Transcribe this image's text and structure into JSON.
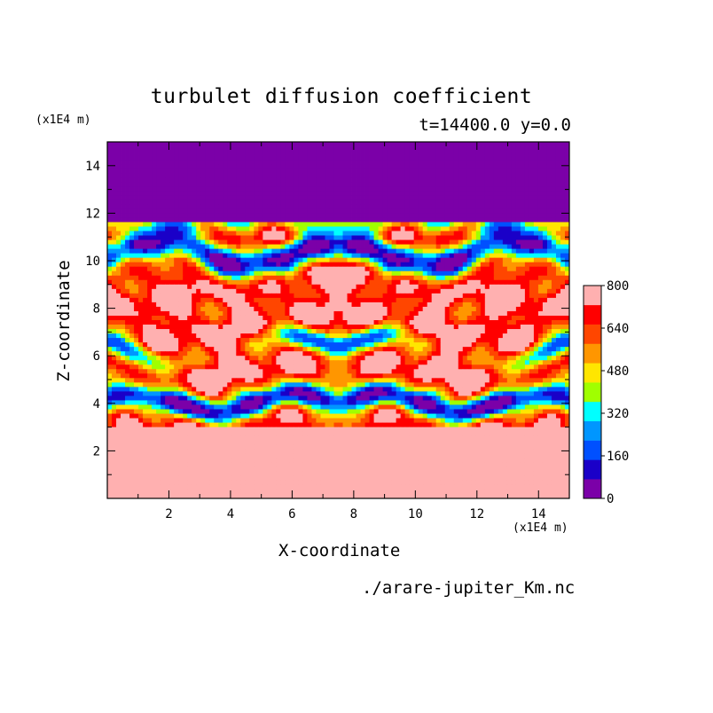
{
  "chart_data": {
    "type": "heatmap",
    "title": "turbulet diffusion coefficient",
    "subtitle": "t=14400.0 y=0.0",
    "xlabel": "X-coordinate",
    "ylabel": "Z-coordinate",
    "x_unit": "(x1E4 m)",
    "y_unit": "(x1E4 m)",
    "source": "./arare-jupiter_Km.nc",
    "xlim": [
      0,
      15
    ],
    "ylim": [
      0,
      15
    ],
    "x_ticks": [
      2,
      4,
      6,
      8,
      10,
      12,
      14
    ],
    "y_ticks": [
      2,
      4,
      6,
      8,
      10,
      12,
      14
    ],
    "colorbar": {
      "levels": [
        0,
        80,
        160,
        240,
        320,
        400,
        480,
        560,
        640,
        720,
        800
      ],
      "tick_labels": [
        "0",
        "160",
        "320",
        "480",
        "640",
        "800"
      ],
      "colors": [
        "#7b00a8",
        "#1a00c8",
        "#0050ff",
        "#0096ff",
        "#00ffff",
        "#a0ff00",
        "#ffe600",
        "#ff9600",
        "#ff4600",
        "#ff0000",
        "#ffb0b0"
      ]
    },
    "field_description_values": {
      "upper_region_value": 0,
      "lower_region_value": 800
    }
  }
}
